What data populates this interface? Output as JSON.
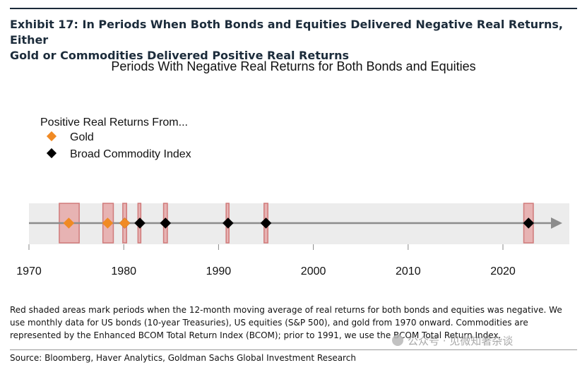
{
  "exhibit_title": "Exhibit 17: In Periods When Both Bonds and Equities Delivered Negative Real Returns, Either\nGold or Commodities Delivered Positive Real Returns",
  "chart_title": "Periods With Negative Real Returns for Both Bonds and Equities",
  "legend": {
    "heading": "Positive Real Returns From...",
    "items": [
      {
        "label": "Gold",
        "color": "#f08a24",
        "shape": "diamond"
      },
      {
        "label": "Broad Commodity Index",
        "color": "#000000",
        "shape": "diamond"
      }
    ]
  },
  "colors": {
    "band_fill": "#ececec",
    "shade_fill": "#e7b3b3",
    "shade_stroke": "#d07a7a",
    "axis_line": "#8c8c8c"
  },
  "chart_data": {
    "type": "scatter",
    "xlim": [
      1970,
      2027
    ],
    "ticks": [
      1970,
      1980,
      1990,
      2000,
      2010,
      2020
    ],
    "shaded_periods": [
      [
        1973.2,
        1975.3
      ],
      [
        1977.8,
        1978.9
      ],
      [
        1979.9,
        1980.3
      ],
      [
        1981.5,
        1981.8
      ],
      [
        1984.2,
        1984.6
      ],
      [
        1990.8,
        1991.1
      ],
      [
        1994.8,
        1995.2
      ],
      [
        2022.2,
        2023.2
      ]
    ],
    "series": [
      {
        "name": "Gold",
        "x": [
          1974.2,
          1978.3,
          1980.1
        ]
      },
      {
        "name": "Broad Commodity Index",
        "x": [
          1980.1,
          1981.7,
          1984.4,
          1991.0,
          1995.0,
          2022.7
        ]
      }
    ]
  },
  "notes": "Red shaded areas mark periods when the 12-month moving average of real returns for both bonds and equities was negative. We use monthly data for US bonds (10-year Treasuries), US equities (S&P 500), and gold from 1970 onward. Commodities are represented by the Enhanced BCOM Total Return Index (BCOM); prior to 1991, we use the BCOM Total Return Index.",
  "source": "Source: Bloomberg, Haver Analytics, Goldman Sachs Global Investment Research",
  "watermark": "公众号 · 见微知著杂谈"
}
